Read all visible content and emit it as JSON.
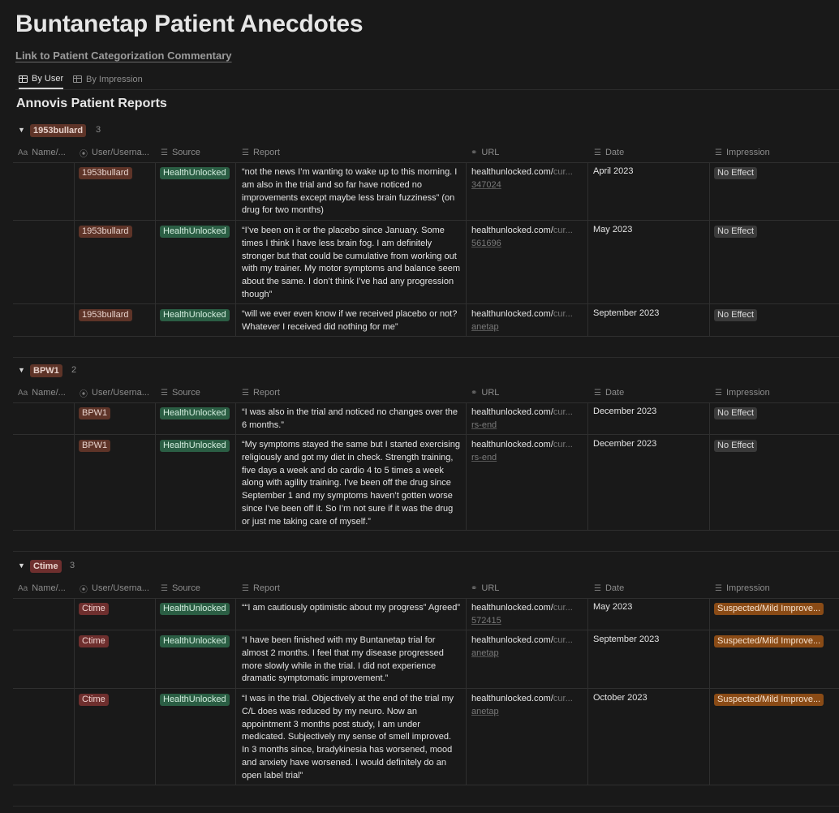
{
  "title": "Buntanetap Patient Anecdotes",
  "link_text": "Link to Patient Categorization Commentary",
  "tabs": [
    {
      "label": "By User",
      "active": true
    },
    {
      "label": "By Impression",
      "active": false
    }
  ],
  "database_title": "Annovis Patient Reports",
  "columns": {
    "name": "Name/...",
    "user": "User/Userna...",
    "source": "Source",
    "report": "Report",
    "url": "URL",
    "date": "Date",
    "impression": "Impression"
  },
  "colors": {
    "user_tag_brown": "#5e3428",
    "user_tag_red": "#6e2f2e",
    "source_tag_green": "#2b5e44",
    "impression_no_effect": "#3a3a3a",
    "impression_mild": "#8a4b16"
  },
  "groups": [
    {
      "label": "1953bullard",
      "count": "3",
      "rows": [
        {
          "user": "1953bullard",
          "source": "HealthUnlocked",
          "report": "“not the news I’m wanting to wake up to this morning. I am also in the trial and so far have noticed no improvements except maybe less brain fuzziness” (on drug for two months)",
          "url_main": "healthunlocked.com/",
          "url_fade": "cur...",
          "url_line2": "347024",
          "date": "April 2023",
          "impression": "No Effect"
        },
        {
          "user": "1953bullard",
          "source": "HealthUnlocked",
          "report": "“I’ve been on it or the placebo since January. Some times I think I have less brain fog. I am definitely stronger but that could be cumulative from working out with my trainer. My motor symptoms and balance seem about the same. I don’t think I’ve had any progression though”",
          "url_main": "healthunlocked.com/",
          "url_fade": "cur...",
          "url_line2": "561696",
          "date": "May 2023",
          "impression": "No Effect"
        },
        {
          "user": "1953bullard",
          "source": "HealthUnlocked",
          "report": "“will we ever even know if we received placebo or not? Whatever I received did nothing for me”",
          "url_main": "healthunlocked.com/",
          "url_fade": "cur...",
          "url_line2": "anetap",
          "date": "September 2023",
          "impression": "No Effect"
        }
      ]
    },
    {
      "label": "BPW1",
      "count": "2",
      "rows": [
        {
          "user": "BPW1",
          "source": "HealthUnlocked",
          "report": "“I was also in the trial and noticed no changes over the 6 months.”",
          "url_main": "healthunlocked.com/",
          "url_fade": "cur...",
          "url_line2": "rs-end",
          "date": "December 2023",
          "impression": "No Effect"
        },
        {
          "user": "BPW1",
          "source": "HealthUnlocked",
          "report": "“My symptoms stayed the same but I started exercising religiously and got my diet in check. Strength training, five days a week and do cardio 4 to 5 times a week along with agility training. I’ve been off the drug since September 1 and my symptoms haven’t gotten worse since I’ve been off it. So I’m not sure if it was the drug or just me taking care of myself.”",
          "url_main": "healthunlocked.com/",
          "url_fade": "cur...",
          "url_line2": "rs-end",
          "date": "December 2023",
          "impression": "No Effect"
        }
      ]
    },
    {
      "label": "Ctime",
      "count": "3",
      "rows": [
        {
          "user": "Ctime",
          "source": "HealthUnlocked",
          "report": "““I am cautiously optimistic about my progress” Agreed”",
          "url_main": "healthunlocked.com/",
          "url_fade": "cur...",
          "url_line2": "572415",
          "date": "May 2023",
          "impression": "Suspected/Mild Improve..."
        },
        {
          "user": "Ctime",
          "source": "HealthUnlocked",
          "report": "“I have been finished with my Buntanetap trial for almost 2 months. I feel that my disease progressed more slowly while in the trial. I did not experience dramatic symptomatic improvement.”",
          "url_main": "healthunlocked.com/",
          "url_fade": "cur...",
          "url_line2": "anetap",
          "date": "September 2023",
          "impression": "Suspected/Mild Improve..."
        },
        {
          "user": "Ctime",
          "source": "HealthUnlocked",
          "report": "“I was in the trial. Objectively at the end of the trial my C/L does was reduced by my neuro. Now an appointment 3 months post study, I am under medicated. Subjectively my sense of smell improved. In 3 months since, bradykinesia has worsened, mood and anxiety have worsened. I would definitely do an open label trial”",
          "url_main": "healthunlocked.com/",
          "url_fade": "cur...",
          "url_line2": "anetap",
          "date": "October 2023",
          "impression": "Suspected/Mild Improve..."
        }
      ]
    }
  ]
}
